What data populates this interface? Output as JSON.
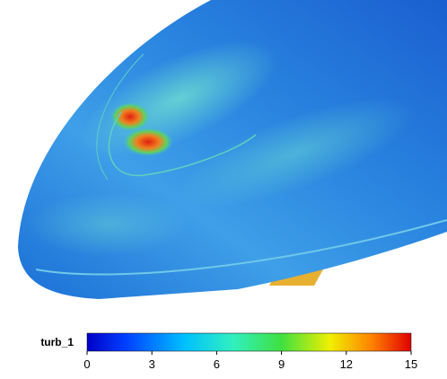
{
  "colorbar": {
    "label": "turb_1",
    "range": [
      0,
      15
    ],
    "ticks": [
      0,
      3,
      6,
      9,
      12,
      15
    ]
  }
}
